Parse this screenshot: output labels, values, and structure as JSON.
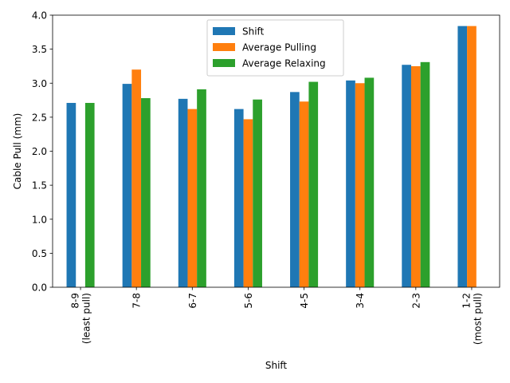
{
  "chart_data": {
    "type": "bar",
    "title": "",
    "xlabel": "Shift",
    "ylabel": "Cable Pull (mm)",
    "categories": [
      [
        "8-9",
        "(least pull)"
      ],
      [
        "7-8"
      ],
      [
        "6-7"
      ],
      [
        "5-6"
      ],
      [
        "4-5"
      ],
      [
        "3-4"
      ],
      [
        "2-3"
      ],
      [
        "1-2",
        "(most pull)"
      ]
    ],
    "series": [
      {
        "name": "Shift",
        "color": "#1f77b4",
        "values": [
          2.71,
          2.99,
          2.77,
          2.62,
          2.87,
          3.04,
          3.27,
          3.84
        ]
      },
      {
        "name": "Average Pulling",
        "color": "#ff7f0e",
        "values": [
          null,
          3.2,
          2.62,
          2.47,
          2.73,
          3.0,
          3.25,
          3.84
        ]
      },
      {
        "name": "Average Relaxing",
        "color": "#2ca02c",
        "values": [
          2.71,
          2.78,
          2.91,
          2.76,
          3.02,
          3.08,
          3.31,
          null
        ]
      }
    ],
    "ylim": [
      0,
      4.0
    ],
    "yticks": [
      "0.0",
      "0.5",
      "1.0",
      "1.5",
      "2.0",
      "2.5",
      "3.0",
      "3.5",
      "4.0"
    ],
    "grid": false,
    "legend": {
      "placement": "top-center"
    }
  }
}
